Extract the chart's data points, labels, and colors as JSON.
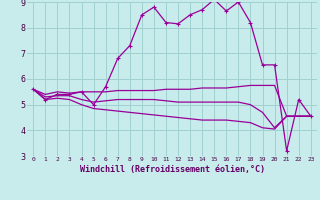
{
  "xlabel": "Windchill (Refroidissement éolien,°C)",
  "x": [
    0,
    1,
    2,
    3,
    4,
    5,
    6,
    7,
    8,
    9,
    10,
    11,
    12,
    13,
    14,
    15,
    16,
    17,
    18,
    19,
    20,
    21,
    22,
    23
  ],
  "line1": [
    5.6,
    5.2,
    5.4,
    5.4,
    5.5,
    5.0,
    5.7,
    6.8,
    7.3,
    8.5,
    8.8,
    8.2,
    8.15,
    8.5,
    8.7,
    9.1,
    8.65,
    9.0,
    8.2,
    6.55,
    6.55,
    3.2,
    5.2,
    4.55
  ],
  "line2": [
    5.6,
    5.4,
    5.5,
    5.45,
    5.5,
    5.5,
    5.5,
    5.55,
    5.55,
    5.55,
    5.55,
    5.6,
    5.6,
    5.6,
    5.65,
    5.65,
    5.65,
    5.7,
    5.75,
    5.75,
    5.75,
    4.55,
    4.55,
    4.55
  ],
  "line3": [
    5.6,
    5.3,
    5.35,
    5.35,
    5.2,
    5.1,
    5.15,
    5.2,
    5.2,
    5.2,
    5.2,
    5.15,
    5.1,
    5.1,
    5.1,
    5.1,
    5.1,
    5.1,
    5.0,
    4.7,
    4.1,
    4.55,
    4.55,
    4.55
  ],
  "line4": [
    5.6,
    5.2,
    5.25,
    5.2,
    5.0,
    4.85,
    4.8,
    4.75,
    4.7,
    4.65,
    4.6,
    4.55,
    4.5,
    4.45,
    4.4,
    4.4,
    4.4,
    4.35,
    4.3,
    4.1,
    4.05,
    4.55,
    4.55,
    4.55
  ],
  "line_color": "#990099",
  "bg_color": "#c8ecec",
  "grid_color": "#a0d0d0",
  "ylim": [
    3,
    9
  ],
  "yticks": [
    3,
    4,
    5,
    6,
    7,
    8,
    9
  ],
  "xticks": [
    0,
    1,
    2,
    3,
    4,
    5,
    6,
    7,
    8,
    9,
    10,
    11,
    12,
    13,
    14,
    15,
    16,
    17,
    18,
    19,
    20,
    21,
    22,
    23
  ],
  "marker": "+"
}
